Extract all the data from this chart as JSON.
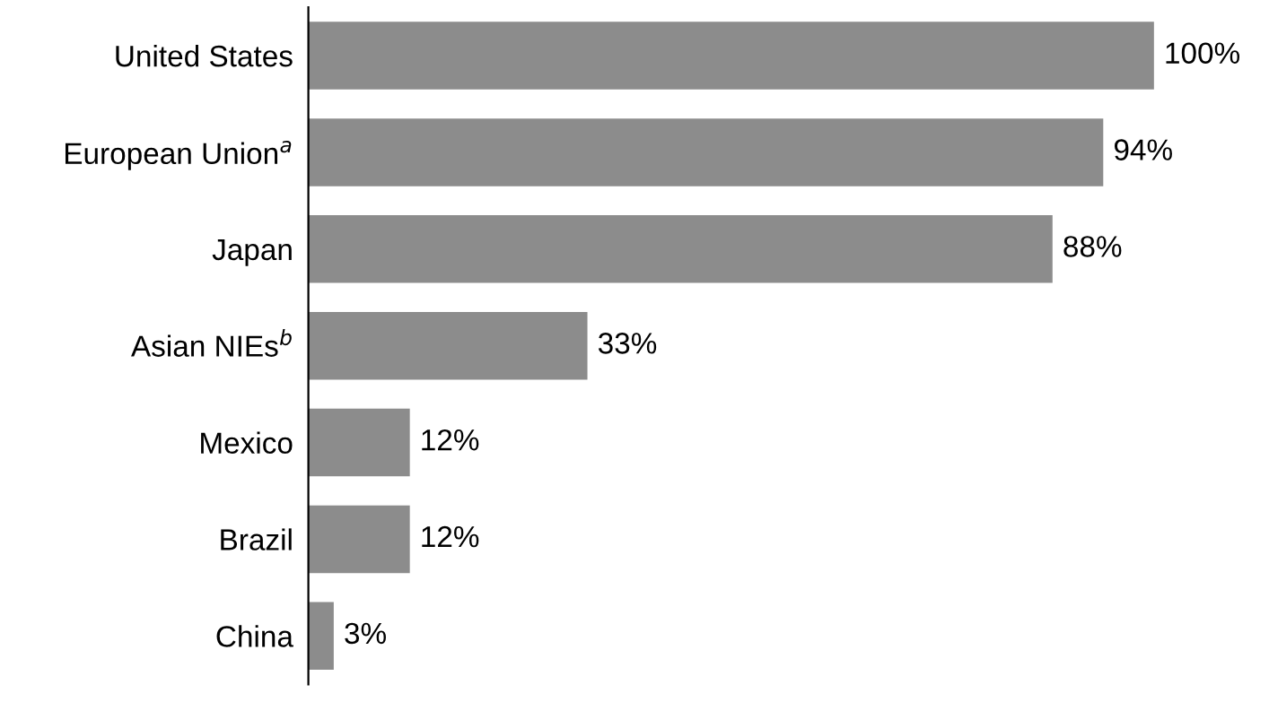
{
  "chart_data": {
    "type": "bar",
    "orientation": "horizontal",
    "categories": [
      "United States",
      "European Union$^{a}$",
      "Japan",
      "Asian NIEs$^{b}$",
      "Mexico",
      "Brazil",
      "China"
    ],
    "values": [
      100,
      94,
      88,
      33,
      12,
      12,
      3
    ],
    "value_labels": [
      "100%",
      "94%",
      "88%",
      "33%",
      "12%",
      "12%",
      "3%"
    ],
    "color": "#8c8c8c"
  }
}
